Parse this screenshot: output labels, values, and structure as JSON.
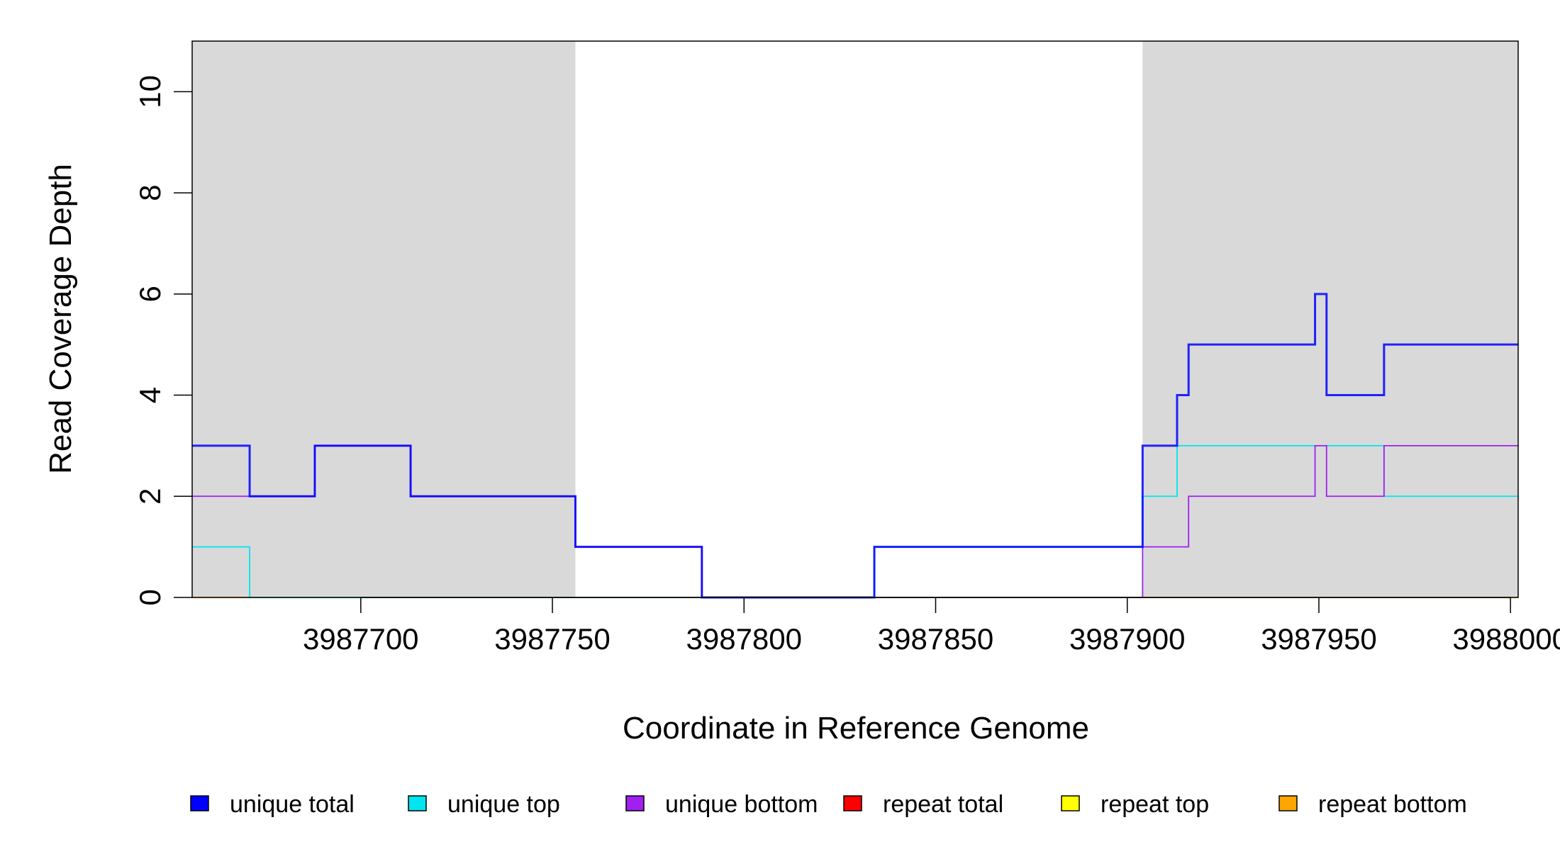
{
  "chart_data": {
    "type": "line",
    "step": true,
    "xlabel": "Coordinate in Reference Genome",
    "ylabel": "Read Coverage Depth",
    "xlim": [
      3987656,
      3988002
    ],
    "ylim": [
      0,
      11
    ],
    "x_ticks": [
      3987700,
      3987750,
      3987800,
      3987850,
      3987900,
      3987950,
      3988000
    ],
    "x_tick_labels": [
      "3987700",
      "3987750",
      "3987800",
      "3987850",
      "3987900",
      "3987950",
      "3988000"
    ],
    "y_ticks": [
      0,
      2,
      4,
      6,
      8,
      10
    ],
    "y_tick_labels": [
      "0",
      "2",
      "4",
      "6",
      "8",
      "10"
    ],
    "shaded_regions": [
      [
        3987656,
        3987756
      ],
      [
        3987904,
        3988002
      ]
    ],
    "shade_color": "#d9d9d9",
    "grid": false,
    "legend_position": "bottom",
    "series": [
      {
        "name": "unique total",
        "color": "#0000ff",
        "x": [
          3987656,
          3987671,
          3987688,
          3987713,
          3987756,
          3987789,
          3987834,
          3987904,
          3987913,
          3987916,
          3987949,
          3987952,
          3987967,
          3988002
        ],
        "values": [
          3,
          2,
          3,
          2,
          1,
          0,
          1,
          3,
          4,
          5,
          6,
          4,
          5,
          5
        ]
      },
      {
        "name": "unique top",
        "color": "#00e5ee",
        "x": [
          3987656,
          3987671,
          3987834,
          3987904,
          3987913,
          3987967,
          3988002
        ],
        "values": [
          1,
          0,
          1,
          2,
          3,
          2,
          2
        ]
      },
      {
        "name": "unique bottom",
        "color": "#a020f0",
        "x": [
          3987656,
          3987688,
          3987713,
          3987756,
          3987789,
          3987904,
          3987916,
          3987949,
          3987952,
          3987967,
          3988002
        ],
        "values": [
          2,
          3,
          2,
          1,
          0,
          1,
          2,
          3,
          2,
          3,
          3
        ]
      },
      {
        "name": "repeat total",
        "color": "#ff0000",
        "x": [
          3987656,
          3988002
        ],
        "values": [
          0,
          0
        ]
      },
      {
        "name": "repeat top",
        "color": "#ffff00",
        "x": [
          3987656,
          3988002
        ],
        "values": [
          0,
          0
        ]
      },
      {
        "name": "repeat bottom",
        "color": "#ffa500",
        "x": [
          3987656,
          3988002
        ],
        "values": [
          0,
          0
        ]
      }
    ]
  }
}
